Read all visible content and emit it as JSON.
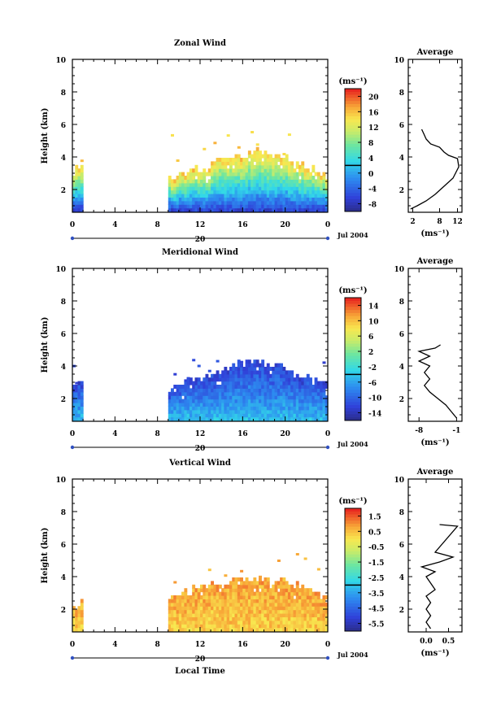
{
  "chart_data": [
    {
      "type": "heatmap",
      "title": "Zonal Wind",
      "ylabel": "Height (km)",
      "xlabel": "",
      "x_ticks": [
        "0",
        "4",
        "8",
        "12",
        "16",
        "20",
        "0"
      ],
      "y_ticks": [
        "2",
        "4",
        "6",
        "8",
        "10"
      ],
      "xlim": [
        0,
        24
      ],
      "ylim": [
        0.6,
        10
      ],
      "date_marker": "20",
      "date_label": "Jul 2004",
      "colorbar": {
        "unit": "(ms⁻¹)",
        "ticks": [
          "20",
          "16",
          "12",
          "8",
          "4",
          "0",
          "-4",
          "-8"
        ],
        "min": -10,
        "max": 22
      },
      "data_columns": {
        "segments": [
          [
            0,
            1.0
          ],
          [
            9,
            24
          ]
        ],
        "top_height_km": [
          [
            0,
            3.0
          ],
          [
            1,
            3.4
          ],
          [
            9,
            2.6
          ],
          [
            10,
            2.8
          ],
          [
            11,
            3.2
          ],
          [
            12,
            3.2
          ],
          [
            13,
            3.4
          ],
          [
            14,
            3.8
          ],
          [
            15,
            3.9
          ],
          [
            16,
            4.0
          ],
          [
            17,
            4.4
          ],
          [
            18,
            4.2
          ],
          [
            19,
            4.1
          ],
          [
            20,
            3.9
          ],
          [
            21,
            3.6
          ],
          [
            22,
            3.3
          ],
          [
            23,
            3.0
          ],
          [
            24,
            2.7
          ]
        ],
        "sparse_top_height_km": 5.8,
        "value_bottom": -6,
        "value_top": 16
      },
      "avg_profile": {
        "title": "Average",
        "xlabel": "(ms⁻¹)",
        "x_ticks": [
          "2",
          "8",
          "12"
        ],
        "y_ticks": [
          "2",
          "4",
          "6",
          "8",
          "10"
        ],
        "xlim": [
          1,
          13
        ],
        "points": [
          [
            1.5,
            0.8
          ],
          [
            3,
            1.0
          ],
          [
            5,
            1.3
          ],
          [
            7,
            1.7
          ],
          [
            9,
            2.2
          ],
          [
            11,
            2.7
          ],
          [
            12.3,
            3.4
          ],
          [
            12.0,
            3.9
          ],
          [
            10,
            4.1
          ],
          [
            9,
            4.3
          ],
          [
            8,
            4.6
          ],
          [
            6,
            4.8
          ],
          [
            5,
            5.1
          ],
          [
            4.5,
            5.4
          ],
          [
            4,
            5.7
          ]
        ]
      }
    },
    {
      "type": "heatmap",
      "title": "Meridional Wind",
      "ylabel": "Height (km)",
      "xlabel": "",
      "x_ticks": [
        "0",
        "4",
        "8",
        "12",
        "16",
        "20",
        "0"
      ],
      "y_ticks": [
        "2",
        "4",
        "6",
        "8",
        "10"
      ],
      "xlim": [
        0,
        24
      ],
      "ylim": [
        0.6,
        10
      ],
      "date_marker": "20",
      "date_label": "Jul 2004",
      "colorbar": {
        "unit": "(ms⁻¹)",
        "ticks": [
          "14",
          "10",
          "6",
          "2",
          "-2",
          "-6",
          "-10",
          "-14"
        ],
        "min": -16,
        "max": 16
      },
      "data_columns": {
        "segments": [
          [
            0,
            1.0
          ],
          [
            9,
            24
          ]
        ],
        "top_height_km": [
          [
            0,
            2.8
          ],
          [
            1,
            3.0
          ],
          [
            9,
            2.5
          ],
          [
            10,
            2.8
          ],
          [
            11,
            3.0
          ],
          [
            12,
            3.2
          ],
          [
            13,
            3.3
          ],
          [
            14,
            3.6
          ],
          [
            15,
            3.9
          ],
          [
            16,
            4.0
          ],
          [
            17,
            4.2
          ],
          [
            18,
            4.0
          ],
          [
            19,
            3.9
          ],
          [
            20,
            3.6
          ],
          [
            21,
            3.4
          ],
          [
            22,
            3.2
          ],
          [
            23,
            3.0
          ],
          [
            24,
            2.8
          ]
        ],
        "sparse_top_height_km": 4.5,
        "value_bottom": -4,
        "value_top": -12
      },
      "avg_profile": {
        "title": "Average",
        "xlabel": "(ms⁻¹)",
        "x_ticks": [
          "-8",
          "-1"
        ],
        "y_ticks": [
          "2",
          "4",
          "6",
          "8",
          "10"
        ],
        "xlim": [
          -10,
          0
        ],
        "points": [
          [
            -1,
            0.8
          ],
          [
            -2,
            1.2
          ],
          [
            -3,
            1.6
          ],
          [
            -4.5,
            2.0
          ],
          [
            -6,
            2.4
          ],
          [
            -7,
            2.8
          ],
          [
            -6,
            3.2
          ],
          [
            -7,
            3.6
          ],
          [
            -6,
            4.0
          ],
          [
            -8,
            4.3
          ],
          [
            -6,
            4.6
          ],
          [
            -8,
            4.9
          ],
          [
            -5,
            5.1
          ],
          [
            -4,
            5.3
          ]
        ]
      }
    },
    {
      "type": "heatmap",
      "title": "Vertical Wind",
      "ylabel": "Height (km)",
      "xlabel": "Local Time",
      "x_ticks": [
        "0",
        "4",
        "8",
        "12",
        "16",
        "20",
        "0"
      ],
      "y_ticks": [
        "2",
        "4",
        "6",
        "8",
        "10"
      ],
      "xlim": [
        0,
        24
      ],
      "ylim": [
        0.6,
        10
      ],
      "date_marker": "20",
      "date_label": "Jul 2004",
      "colorbar": {
        "unit": "(ms⁻¹)",
        "ticks": [
          "1.5",
          "0.5",
          "-0.5",
          "-1.5",
          "-2.5",
          "-3.5",
          "-4.5",
          "-5.5"
        ],
        "min": -6.5,
        "max": 2
      },
      "data_columns": {
        "segments": [
          [
            0,
            1.0
          ],
          [
            9,
            24
          ]
        ],
        "top_height_km": [
          [
            0,
            2.2
          ],
          [
            1,
            2.4
          ],
          [
            9,
            2.6
          ],
          [
            10,
            2.8
          ],
          [
            11,
            3.0
          ],
          [
            12,
            3.3
          ],
          [
            13,
            3.4
          ],
          [
            14,
            3.4
          ],
          [
            15,
            3.6
          ],
          [
            16,
            3.7
          ],
          [
            17,
            3.8
          ],
          [
            18,
            3.8
          ],
          [
            19,
            3.7
          ],
          [
            20,
            3.6
          ],
          [
            21,
            3.4
          ],
          [
            22,
            3.2
          ],
          [
            23,
            2.8
          ],
          [
            24,
            2.6
          ]
        ],
        "sparse_top_height_km": 5.6,
        "value_bottom": 0.3,
        "value_top": 0.8
      },
      "avg_profile": {
        "title": "Average",
        "xlabel": "(ms⁻¹)",
        "x_ticks": [
          "0.0",
          "0.5"
        ],
        "y_ticks": [
          "2",
          "4",
          "6",
          "8",
          "10"
        ],
        "xlim": [
          -0.4,
          0.8
        ],
        "points": [
          [
            0.1,
            0.8
          ],
          [
            0.0,
            1.2
          ],
          [
            0.1,
            1.6
          ],
          [
            0.0,
            2.0
          ],
          [
            0.1,
            2.4
          ],
          [
            0.0,
            2.8
          ],
          [
            0.2,
            3.2
          ],
          [
            0.1,
            3.6
          ],
          [
            0.0,
            4.0
          ],
          [
            0.2,
            4.3
          ],
          [
            -0.1,
            4.6
          ],
          [
            0.3,
            4.9
          ],
          [
            0.6,
            5.2
          ],
          [
            0.2,
            5.5
          ],
          [
            0.7,
            7.1
          ],
          [
            0.3,
            7.2
          ]
        ]
      }
    }
  ]
}
